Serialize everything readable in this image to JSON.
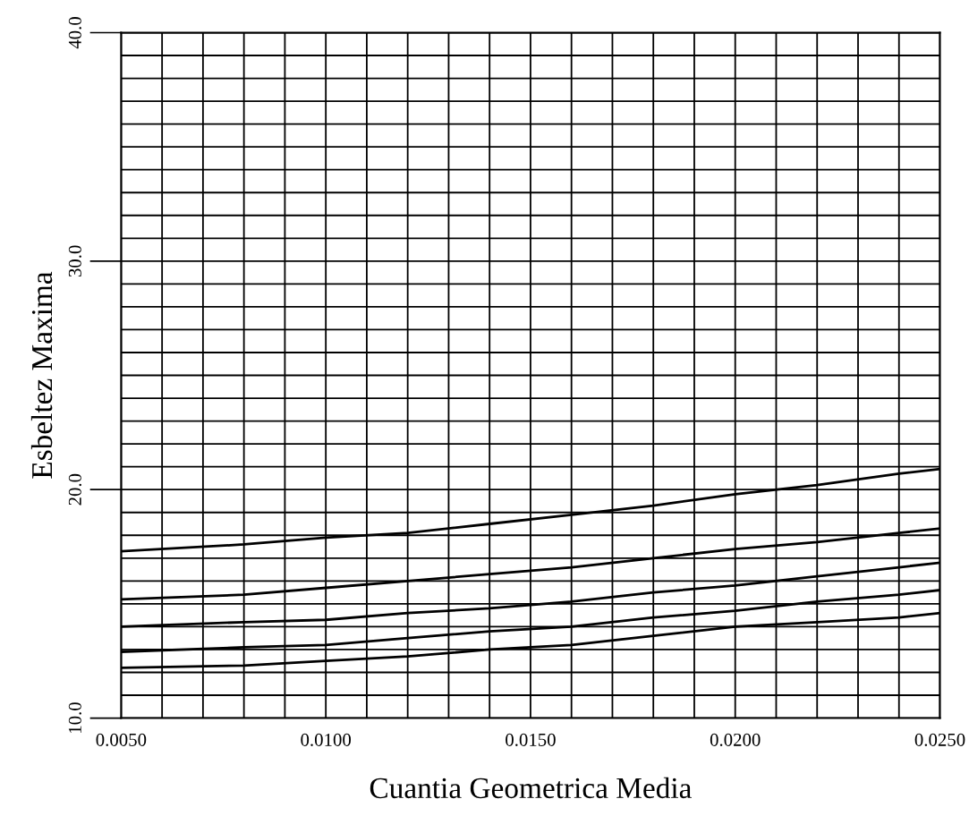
{
  "chart_data": {
    "type": "line",
    "xlabel": "Cuantia Geometrica Media",
    "ylabel": "Esbeltez Maxima",
    "x": [
      0.005,
      0.008,
      0.01,
      0.012,
      0.014,
      0.016,
      0.018,
      0.02,
      0.022,
      0.024,
      0.025
    ],
    "series": [
      {
        "color": "#000000",
        "values": [
          17.3,
          17.6,
          17.9,
          18.1,
          18.5,
          18.9,
          19.3,
          19.8,
          20.2,
          20.7,
          20.9
        ]
      },
      {
        "color": "#000000",
        "values": [
          15.2,
          15.4,
          15.7,
          16.0,
          16.3,
          16.6,
          17.0,
          17.4,
          17.7,
          18.1,
          18.3
        ]
      },
      {
        "color": "#000000",
        "values": [
          14.0,
          14.2,
          14.3,
          14.6,
          14.8,
          15.1,
          15.5,
          15.8,
          16.2,
          16.6,
          16.8
        ]
      },
      {
        "color": "#000000",
        "values": [
          12.9,
          13.1,
          13.2,
          13.5,
          13.8,
          14.0,
          14.4,
          14.7,
          15.1,
          15.4,
          15.6
        ]
      },
      {
        "color": "#000000",
        "values": [
          12.2,
          12.3,
          12.5,
          12.7,
          13.0,
          13.2,
          13.6,
          14.0,
          14.2,
          14.4,
          14.6
        ]
      }
    ],
    "xlim": [
      0.005,
      0.025
    ],
    "xticks": [
      {
        "value": 0.005,
        "label": "0.0050"
      },
      {
        "value": 0.006,
        "label": null
      },
      {
        "value": 0.007,
        "label": null
      },
      {
        "value": 0.008,
        "label": null
      },
      {
        "value": 0.009,
        "label": null
      },
      {
        "value": 0.01,
        "label": "0.0100"
      },
      {
        "value": 0.011,
        "label": null
      },
      {
        "value": 0.012,
        "label": null
      },
      {
        "value": 0.013,
        "label": null
      },
      {
        "value": 0.014,
        "label": null
      },
      {
        "value": 0.015,
        "label": "0.0150"
      },
      {
        "value": 0.016,
        "label": null
      },
      {
        "value": 0.017,
        "label": null
      },
      {
        "value": 0.018,
        "label": null
      },
      {
        "value": 0.019,
        "label": null
      },
      {
        "value": 0.02,
        "label": "0.0200"
      },
      {
        "value": 0.021,
        "label": null
      },
      {
        "value": 0.022,
        "label": null
      },
      {
        "value": 0.023,
        "label": null
      },
      {
        "value": 0.024,
        "label": null
      },
      {
        "value": 0.025,
        "label": "0.0250"
      }
    ],
    "ylim": [
      10,
      40
    ],
    "yticks": [
      {
        "value": 10,
        "label": "10.0"
      },
      {
        "value": 11,
        "label": null
      },
      {
        "value": 12,
        "label": null
      },
      {
        "value": 13,
        "label": null
      },
      {
        "value": 14,
        "label": null
      },
      {
        "value": 15,
        "label": null
      },
      {
        "value": 16,
        "label": null
      },
      {
        "value": 17,
        "label": null
      },
      {
        "value": 18,
        "label": null
      },
      {
        "value": 19,
        "label": null
      },
      {
        "value": 20,
        "label": "20.0"
      },
      {
        "value": 21,
        "label": null
      },
      {
        "value": 22,
        "label": null
      },
      {
        "value": 23,
        "label": null
      },
      {
        "value": 24,
        "label": null
      },
      {
        "value": 25,
        "label": null
      },
      {
        "value": 26,
        "label": null
      },
      {
        "value": 27,
        "label": null
      },
      {
        "value": 28,
        "label": null
      },
      {
        "value": 29,
        "label": null
      },
      {
        "value": 30,
        "label": "30.0"
      },
      {
        "value": 31,
        "label": null
      },
      {
        "value": 32,
        "label": null
      },
      {
        "value": 33,
        "label": null
      },
      {
        "value": 34,
        "label": null
      },
      {
        "value": 35,
        "label": null
      },
      {
        "value": 36,
        "label": null
      },
      {
        "value": 37,
        "label": null
      },
      {
        "value": 38,
        "label": null
      },
      {
        "value": 39,
        "label": null
      },
      {
        "value": 40,
        "label": "40.0"
      }
    ],
    "grid": true,
    "marker": "none",
    "line_style": "solid"
  }
}
